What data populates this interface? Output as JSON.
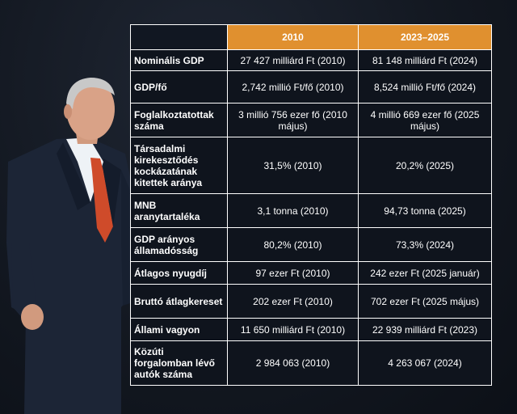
{
  "table": {
    "headers": [
      "2010",
      "2023–2025"
    ],
    "rows": [
      {
        "label": "Nominális GDP",
        "v2010": "27 427 milliárd Ft (2010)",
        "vnow": "81 148 milliárd Ft (2024)"
      },
      {
        "label": "GDP/fő",
        "v2010": "2,742 millió Ft/fő (2010)",
        "vnow": "8,524 millió Ft/fő (2024)"
      },
      {
        "label": "Foglalkoztatottak száma",
        "v2010": "3 millió 756 ezer fő (2010 május)",
        "vnow": "4 millió 669 ezer fő (2025 május)"
      },
      {
        "label": "Társadalmi kirekesztődés kockázatának kitettek aránya",
        "v2010": "31,5% (2010)",
        "vnow": "20,2% (2025)"
      },
      {
        "label": "MNB aranytartaléka",
        "v2010": "3,1 tonna (2010)",
        "vnow": "94,73 tonna (2025)"
      },
      {
        "label": "GDP arányos államadósság",
        "v2010": "80,2% (2010)",
        "vnow": "73,3% (2024)"
      },
      {
        "label": "Átlagos nyugdíj",
        "v2010": "97 ezer Ft (2010)",
        "vnow": "242 ezer Ft (2025 január)"
      },
      {
        "label": "Bruttó átlagkereset",
        "v2010": "202 ezer Ft (2010)",
        "vnow": "702 ezer Ft (2025 május)"
      },
      {
        "label": "Állami vagyon",
        "v2010": "11 650 milliárd Ft (2010)",
        "vnow": "22 939 milliárd Ft (2023)"
      },
      {
        "label": "Közúti forgalomban lévő autók száma",
        "v2010": "2 984 063 (2010)",
        "vnow": "4 263 067 (2024)"
      }
    ]
  }
}
